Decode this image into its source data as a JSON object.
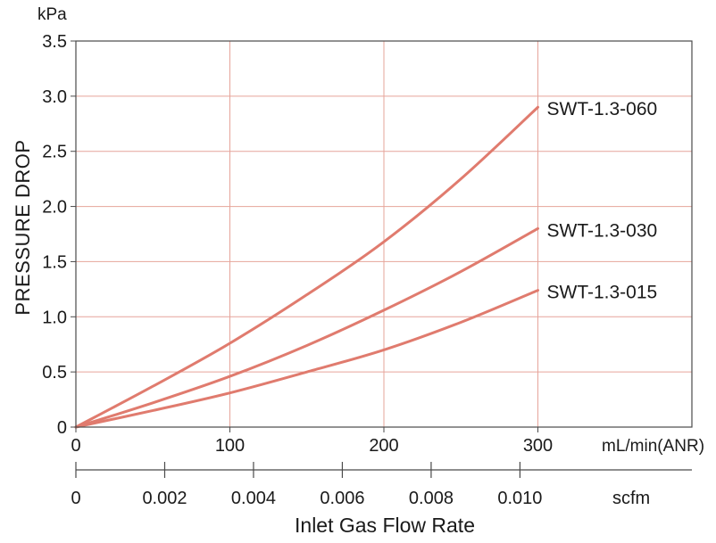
{
  "chart_data": {
    "type": "line",
    "ylabel": "PRESSURE DROP",
    "y_unit": "kPa",
    "ylim": [
      0,
      3.5
    ],
    "y_ticks": [
      0,
      0.5,
      1.0,
      1.5,
      2.0,
      2.5,
      3.0,
      3.5
    ],
    "y_tick_labels": [
      "0",
      "0.5",
      "1.0",
      "1.5",
      "2.0",
      "2.5",
      "3.0",
      "3.5"
    ],
    "x_unit": "mL/min(ANR)",
    "xlim": [
      0,
      400
    ],
    "x_ticks": [
      0,
      100,
      200,
      300
    ],
    "x_tick_labels": [
      "0",
      "100",
      "200",
      "300"
    ],
    "secondary_x_unit": "scfm",
    "secondary_x_ticks": [
      0,
      0.002,
      0.004,
      0.006,
      0.008,
      0.01
    ],
    "secondary_x_tick_labels": [
      "0",
      "0.002",
      "0.004",
      "0.006",
      "0.008",
      "0.010"
    ],
    "xlabel": "Inlet Gas Flow Rate",
    "grid": true,
    "line_color": "#e07b6e",
    "grid_color": "#e6a49a",
    "series": [
      {
        "name": "SWT-1.3-060",
        "x": [
          0,
          50,
          100,
          150,
          200,
          250,
          300
        ],
        "y": [
          0,
          0.37,
          0.76,
          1.2,
          1.68,
          2.25,
          2.9
        ]
      },
      {
        "name": "SWT-1.3-030",
        "x": [
          0,
          50,
          100,
          150,
          200,
          250,
          300
        ],
        "y": [
          0,
          0.22,
          0.46,
          0.74,
          1.06,
          1.41,
          1.8
        ]
      },
      {
        "name": "SWT-1.3-015",
        "x": [
          0,
          50,
          100,
          150,
          200,
          250,
          300
        ],
        "y": [
          0,
          0.15,
          0.31,
          0.5,
          0.7,
          0.95,
          1.24
        ]
      }
    ]
  }
}
